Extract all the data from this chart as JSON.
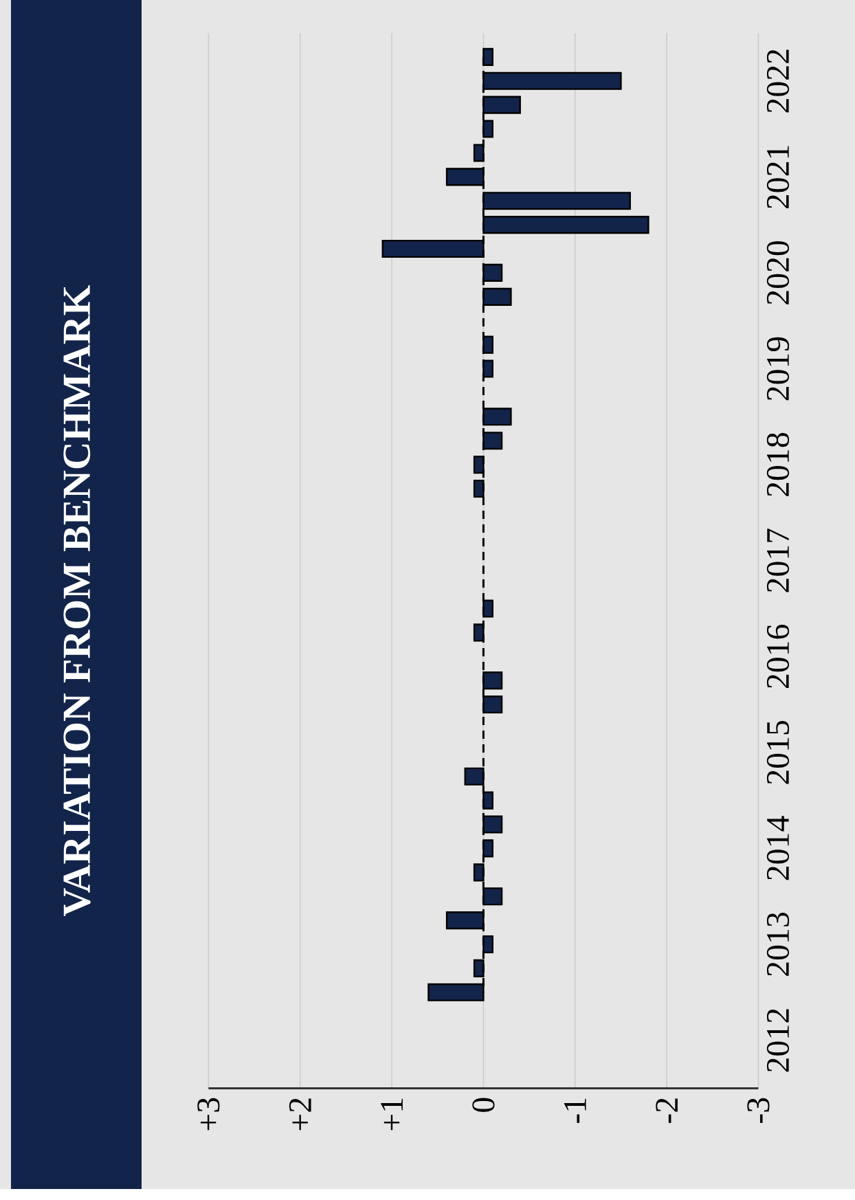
{
  "chart_data": {
    "type": "bar",
    "orientation": "horizontal",
    "title": "VARIATION FROM BENCHMARK",
    "categories": [
      null,
      null,
      "2022",
      null,
      null,
      null,
      "2021",
      null,
      null,
      null,
      "2020",
      null,
      null,
      null,
      "2019",
      null,
      null,
      null,
      "2018",
      null,
      null,
      null,
      "2017",
      null,
      null,
      null,
      "2016",
      null,
      null,
      null,
      "2015",
      null,
      null,
      null,
      "2014",
      null,
      null,
      null,
      "2013",
      null,
      null,
      null,
      "2012",
      null,
      null
    ],
    "xlim": [
      3,
      -3
    ],
    "xticks": [
      {
        "value": 3,
        "label": "+3"
      },
      {
        "value": 2,
        "label": "+2"
      },
      {
        "value": 1,
        "label": "+1"
      },
      0,
      -1,
      -2,
      -3
    ],
    "grid": "x",
    "series": [
      {
        "color": "#13244a",
        "values": [
          null,
          -0.1,
          -1.5,
          -0.4,
          -0.1,
          0.1,
          0.4,
          -1.6,
          -1.8,
          1.1,
          -0.2,
          -0.3,
          null,
          -0.1,
          -0.1,
          null,
          -0.3,
          -0.2,
          0.1,
          0.1,
          null,
          null,
          null,
          null,
          -0.1,
          0.1,
          null,
          -0.2,
          -0.2,
          null,
          null,
          0.2,
          -0.1,
          -0.2,
          -0.1,
          0.1,
          -0.2,
          0.4,
          -0.1,
          0.1,
          0.6,
          null,
          null,
          null,
          null
        ]
      },
      {
        "type": "line",
        "color": "#000000",
        "line_style": "dashed",
        "values": [
          null,
          0,
          0,
          0,
          0,
          0,
          0,
          0,
          0,
          0,
          0,
          0,
          0,
          0,
          0,
          0,
          0,
          0,
          0,
          0,
          0,
          0,
          0,
          0,
          0,
          0,
          0,
          0,
          0,
          0,
          0,
          0,
          0,
          0,
          0,
          0,
          0,
          0,
          0,
          0,
          0,
          null,
          null,
          null,
          null
        ]
      }
    ]
  }
}
